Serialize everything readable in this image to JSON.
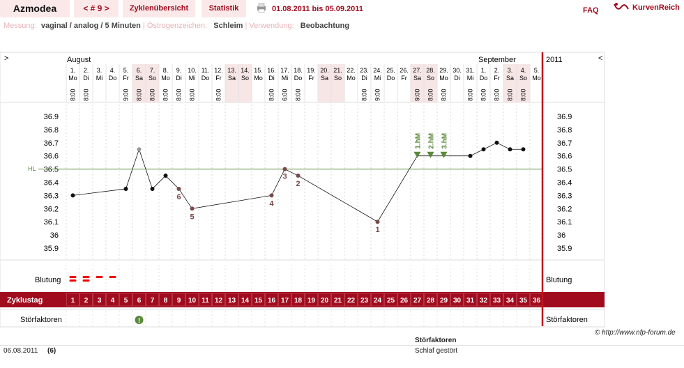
{
  "app": {
    "title": "Azmodea",
    "cycle_nav": "< # 9 >",
    "tab_overview": "Zyklenübersicht",
    "tab_stats": "Statistik",
    "date_range": "01.08.2011 bis 05.09.2011",
    "faq": "FAQ",
    "logo_text": "KurvenReich"
  },
  "meta": {
    "k1": "Messung:",
    "v1": "vaginal / analog / 5 Minuten",
    "k2": "Östrogenzeichen:",
    "v2": "Schleim",
    "k3": "Verwendung:",
    "v3": "Beobachtung"
  },
  "header": {
    "expand_left": ">",
    "expand_right": "<",
    "month1": "August",
    "month2": "September",
    "year": "2011"
  },
  "rows": {
    "bleeding": "Blutung",
    "cycle_day": "Zyklustag",
    "disturbance": "Störfaktoren",
    "hl": "HL"
  },
  "footer": {
    "credit": "© http://www.nfp-forum.de",
    "date": "06.08.2011",
    "cycle_day": "(6)",
    "disturbance_header": "Störfaktoren",
    "disturbance_value": "Schlaf gestört"
  },
  "colors": {
    "accent": "#a00c1e",
    "weekend": "#f7e6e6",
    "coverline": "#5a8a3a",
    "peak": "#5a8a3a"
  },
  "chart_data": {
    "type": "line",
    "ylim": [
      35.9,
      36.9
    ],
    "yticks": [
      "36.9",
      "36.8",
      "36.7",
      "36.6",
      "36.5",
      "36.4",
      "36.3",
      "36.2",
      "36.1",
      "36",
      "35.9"
    ],
    "coverline": 36.5,
    "days": [
      {
        "date": "1.",
        "wd": "Mo",
        "time": "8:00",
        "temp": 36.3,
        "we": false
      },
      {
        "date": "2.",
        "wd": "Di",
        "time": "8:00",
        "temp": null,
        "we": false
      },
      {
        "date": "3.",
        "wd": "Mi",
        "time": "",
        "temp": null,
        "we": false
      },
      {
        "date": "4.",
        "wd": "Do",
        "time": "",
        "temp": null,
        "we": false
      },
      {
        "date": "5.",
        "wd": "Fr",
        "time": "9:00",
        "temp": 36.35,
        "we": false
      },
      {
        "date": "6.",
        "wd": "Sa",
        "time": "8:00",
        "temp": 36.65,
        "we": true,
        "excluded": true
      },
      {
        "date": "7.",
        "wd": "So",
        "time": "8:00",
        "temp": 36.35,
        "we": true
      },
      {
        "date": "8.",
        "wd": "Mo",
        "time": "8:00",
        "temp": 36.45,
        "we": false
      },
      {
        "date": "9.",
        "wd": "Di",
        "time": "8:00",
        "temp": 36.35,
        "we": false,
        "label": "6"
      },
      {
        "date": "10.",
        "wd": "Mi",
        "time": "8:00",
        "temp": 36.2,
        "we": false,
        "label": "5"
      },
      {
        "date": "11.",
        "wd": "Do",
        "time": "",
        "temp": null,
        "we": false
      },
      {
        "date": "12.",
        "wd": "Fr",
        "time": "8:00",
        "temp": null,
        "we": false
      },
      {
        "date": "13.",
        "wd": "Sa",
        "time": "",
        "temp": null,
        "we": true
      },
      {
        "date": "14.",
        "wd": "So",
        "time": "",
        "temp": null,
        "we": true
      },
      {
        "date": "15.",
        "wd": "Mo",
        "time": "",
        "temp": null,
        "we": false
      },
      {
        "date": "16.",
        "wd": "Di",
        "time": "8:00",
        "temp": 36.3,
        "we": false,
        "label": "4"
      },
      {
        "date": "17.",
        "wd": "Mi",
        "time": "6:00",
        "temp": 36.5,
        "we": false,
        "label": "3"
      },
      {
        "date": "18.",
        "wd": "Do",
        "time": "8:00",
        "temp": 36.45,
        "we": false,
        "label": "2"
      },
      {
        "date": "19.",
        "wd": "Fr",
        "time": "",
        "temp": null,
        "we": false
      },
      {
        "date": "20.",
        "wd": "Sa",
        "time": "",
        "temp": null,
        "we": true
      },
      {
        "date": "21.",
        "wd": "So",
        "time": "",
        "temp": null,
        "we": true
      },
      {
        "date": "22.",
        "wd": "Mo",
        "time": "",
        "temp": null,
        "we": false
      },
      {
        "date": "23.",
        "wd": "Di",
        "time": "8:00",
        "temp": null,
        "we": false
      },
      {
        "date": "24.",
        "wd": "Mi",
        "time": "9:00",
        "temp": 36.1,
        "we": false,
        "label": "1"
      },
      {
        "date": "25.",
        "wd": "Do",
        "time": "",
        "temp": null,
        "we": false
      },
      {
        "date": "26.",
        "wd": "Fr",
        "time": "",
        "temp": null,
        "we": false
      },
      {
        "date": "27.",
        "wd": "Sa",
        "time": "9:00",
        "temp": 36.6,
        "we": true,
        "hm": "1.hM"
      },
      {
        "date": "28.",
        "wd": "So",
        "time": "8:00",
        "temp": 36.6,
        "we": true,
        "hm": "2.hM"
      },
      {
        "date": "29.",
        "wd": "Mo",
        "time": "8:00",
        "temp": 36.6,
        "we": false,
        "hm": "3.hM"
      },
      {
        "date": "30.",
        "wd": "Di",
        "time": "",
        "temp": null,
        "we": false
      },
      {
        "date": "31.",
        "wd": "Mi",
        "time": "8:00",
        "temp": 36.6,
        "we": false
      },
      {
        "date": "1.",
        "wd": "Do",
        "time": "8:00",
        "temp": 36.65,
        "we": false
      },
      {
        "date": "2.",
        "wd": "Fr",
        "time": "8:00",
        "temp": 36.7,
        "we": false
      },
      {
        "date": "3.",
        "wd": "Sa",
        "time": "8:00",
        "temp": 36.65,
        "we": true
      },
      {
        "date": "4.",
        "wd": "So",
        "time": "8:00",
        "temp": 36.65,
        "we": true
      },
      {
        "date": "5.",
        "wd": "Mo",
        "time": "",
        "temp": null,
        "we": false
      }
    ],
    "bleeding": [
      {
        "day": 1,
        "kind": "heavy"
      },
      {
        "day": 2,
        "kind": "heavy"
      },
      {
        "day": 3,
        "kind": "light"
      },
      {
        "day": 4,
        "kind": "light"
      }
    ],
    "disturbance_days": [
      6
    ]
  }
}
